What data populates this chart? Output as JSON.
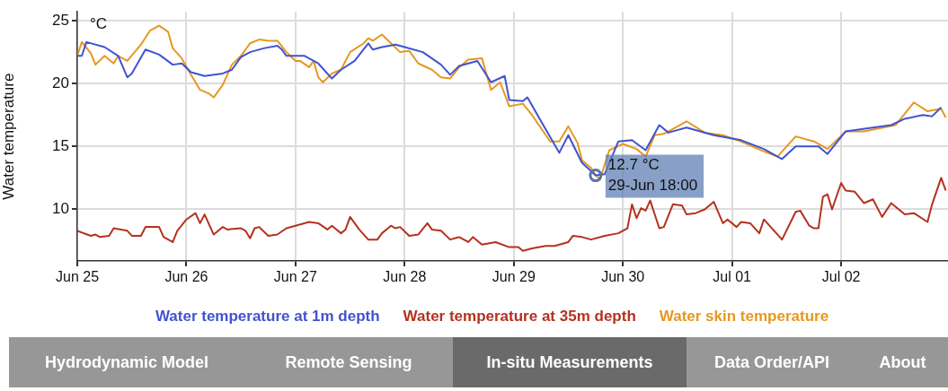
{
  "chart_data": {
    "type": "line",
    "ylabel": "Water temperature",
    "xlim": [
      "--06-25T00:00",
      "--07-02T23:30"
    ],
    "ylim": [
      5.9,
      25.7
    ],
    "yticks": [
      10,
      15,
      20,
      25
    ],
    "xticks": [
      {
        "value": "--06-25",
        "label": "Jun 25"
      },
      {
        "value": "--06-26",
        "label": "Jun 26"
      },
      {
        "value": "--06-27",
        "label": "Jun 27"
      },
      {
        "value": "--06-28",
        "label": "Jun 28"
      },
      {
        "value": "--06-29",
        "label": "Jun 29"
      },
      {
        "value": "--06-30",
        "label": "Jun 30"
      },
      {
        "value": "--07-01",
        "label": "Jul 01"
      },
      {
        "value": "--07-02",
        "label": "Jul 02"
      }
    ],
    "grid": true,
    "legend": "bottom",
    "marker": "none",
    "line_style": "solid",
    "series": [
      {
        "name": "Water temperature at 1m depth",
        "color": "#4053d0",
        "x": [
          "--06-25T00:00",
          "--06-25T01:00",
          "--06-25T02:00",
          "--06-25T06:00",
          "--06-25T09:00",
          "--06-25T11:00",
          "--06-25T12:00",
          "--06-25T15:00",
          "--06-25T18:00",
          "--06-25T21:00",
          "--06-25T23:00",
          "--06-26T01:00",
          "--06-26T04:00",
          "--06-26T08:00",
          "--06-26T10:00",
          "--06-26T12:00",
          "--06-26T14:00",
          "--06-26T17:00",
          "--06-26T20:00",
          "--06-26T21:00",
          "--06-26T22:00",
          "--06-27T00:00",
          "--06-27T02:00",
          "--06-27T05:00",
          "--06-27T08:00",
          "--06-27T10:00",
          "--06-27T13:00",
          "--06-27T16:00",
          "--06-27T17:00",
          "--06-27T19:00",
          "--06-27T22:00",
          "--06-28T00:00",
          "--06-28T04:00",
          "--06-28T08:00",
          "--06-28T10:00",
          "--06-28T12:00",
          "--06-28T16:00",
          "--06-28T19:00",
          "--06-28T22:00",
          "--06-28T23:00",
          "--06-29T02:00",
          "--06-29T03:00",
          "--06-29T06:00",
          "--06-29T10:00",
          "--06-29T12:00",
          "--06-29T15:00",
          "--06-29T18:00",
          "--06-29T20:00",
          "--06-29T23:00",
          "--06-30T02:00",
          "--06-30T05:00",
          "--06-30T08:00",
          "--06-30T10:00",
          "--06-30T14:00",
          "--06-30T20:00",
          "--07-01T02:00",
          "--07-01T07:00",
          "--07-01T11:00",
          "--07-01T14:00",
          "--07-01T19:00",
          "--07-01T21:00",
          "--07-02T01:00",
          "--07-02T07:00",
          "--07-02T11:00",
          "--07-02T14:00",
          "--07-02T18:00",
          "--07-02T20:00",
          "--07-02T22:00"
        ],
        "values": [
          22.2,
          22.2,
          23.3,
          22.9,
          22.2,
          20.5,
          20.8,
          22.7,
          22.3,
          21.5,
          21.6,
          20.9,
          20.6,
          20.8,
          21.1,
          22.1,
          22.5,
          22.8,
          23.0,
          22.7,
          22.2,
          22.2,
          22.2,
          21.6,
          20.4,
          21.1,
          21.8,
          23.2,
          22.7,
          22.9,
          23.1,
          22.9,
          22.5,
          21.5,
          20.7,
          21.4,
          21.8,
          20.1,
          20.6,
          18.7,
          18.6,
          18.9,
          17.0,
          14.5,
          15.9,
          13.7,
          12.7,
          12.8,
          15.4,
          15.5,
          14.7,
          16.7,
          16.1,
          16.5,
          15.9,
          15.5,
          14.8,
          14.0,
          15.0,
          15.0,
          14.4,
          16.2,
          16.5,
          16.7,
          17.2,
          17.5,
          17.4,
          18.1
        ]
      },
      {
        "name": "Water temperature at 35m depth",
        "color": "#b3321f",
        "x": [
          "--06-25T00:00",
          "--06-25T03:00",
          "--06-25T04:00",
          "--06-25T05:00",
          "--06-25T07:00",
          "--06-25T08:00",
          "--06-25T11:00",
          "--06-25T12:00",
          "--06-25T14:00",
          "--06-25T15:00",
          "--06-25T18:00",
          "--06-25T19:00",
          "--06-25T21:00",
          "--06-25T22:00",
          "--06-26T00:00",
          "--06-26T02:00",
          "--06-26T03:00",
          "--06-26T04:00",
          "--06-26T06:00",
          "--06-26T08:00",
          "--06-26T09:00",
          "--06-26T12:00",
          "--06-26T13:00",
          "--06-26T14:00",
          "--06-26T15:00",
          "--06-26T16:00",
          "--06-26T18:00",
          "--06-26T20:00",
          "--06-26T22:00",
          "--06-27T00:00",
          "--06-27T03:00",
          "--06-27T05:00",
          "--06-27T07:00",
          "--06-27T08:00",
          "--06-27T10:00",
          "--06-27T11:00",
          "--06-27T12:00",
          "--06-27T14:00",
          "--06-27T16:00",
          "--06-27T18:00",
          "--06-27T19:00",
          "--06-27T21:00",
          "--06-27T22:00",
          "--06-27T23:00",
          "--06-28T01:00",
          "--06-28T03:00",
          "--06-28T05:00",
          "--06-28T06:00",
          "--06-28T08:00",
          "--06-28T10:00",
          "--06-28T12:00",
          "--06-28T14:00",
          "--06-28T15:00",
          "--06-28T17:00",
          "--06-28T20:00",
          "--06-28T23:00",
          "--06-29T01:00",
          "--06-29T02:00",
          "--06-29T04:00",
          "--06-29T07:00",
          "--06-29T09:00",
          "--06-29T12:00",
          "--06-29T13:00",
          "--06-29T15:00",
          "--06-29T17:00",
          "--06-29T20:00",
          "--06-29T23:00",
          "--06-30T01:00",
          "--06-30T02:00",
          "--06-30T03:00",
          "--06-30T04:00",
          "--06-30T05:00",
          "--06-30T06:00",
          "--06-30T08:00",
          "--06-30T09:00",
          "--06-30T11:00",
          "--06-30T13:00",
          "--06-30T14:00",
          "--06-30T16:00",
          "--06-30T18:00",
          "--06-30T20:00",
          "--06-30T22:00",
          "--06-30T23:00",
          "--07-01T01:00",
          "--07-01T02:00",
          "--07-01T04:00",
          "--07-01T06:00",
          "--07-01T07:00",
          "--07-01T11:00",
          "--07-01T14:00",
          "--07-01T15:00",
          "--07-01T17:00",
          "--07-01T18:00",
          "--07-01T19:00",
          "--07-01T20:00",
          "--07-01T21:00",
          "--07-01T22:00",
          "--07-02T00:00",
          "--07-02T01:00",
          "--07-02T03:00",
          "--07-02T05:00",
          "--07-02T07:00",
          "--07-02T09:00",
          "--07-02T11:00",
          "--07-02T14:00",
          "--07-02T16:00",
          "--07-02T19:00",
          "--07-02T20:00",
          "--07-02T22:00",
          "--07-02T23:00"
        ],
        "values": [
          8.3,
          7.9,
          8.0,
          7.8,
          7.9,
          8.5,
          8.3,
          7.9,
          7.9,
          8.6,
          8.6,
          7.8,
          7.4,
          8.3,
          9.2,
          9.7,
          8.9,
          9.6,
          8.0,
          8.6,
          8.4,
          8.5,
          8.3,
          7.7,
          8.5,
          8.6,
          7.9,
          8.0,
          8.5,
          8.7,
          9.0,
          8.9,
          8.4,
          8.7,
          8.1,
          8.4,
          9.4,
          8.4,
          7.6,
          7.6,
          8.1,
          8.7,
          8.5,
          8.6,
          7.9,
          8.0,
          8.9,
          8.4,
          8.3,
          7.6,
          7.8,
          7.4,
          7.8,
          7.2,
          7.4,
          7.0,
          7.0,
          6.7,
          6.9,
          7.1,
          7.1,
          7.4,
          7.9,
          7.8,
          7.6,
          7.9,
          8.1,
          8.5,
          10.4,
          9.3,
          10.1,
          9.9,
          10.7,
          8.5,
          8.6,
          10.4,
          10.3,
          9.6,
          9.7,
          10.0,
          10.6,
          8.9,
          9.2,
          8.6,
          9.0,
          8.9,
          8.1,
          9.2,
          7.6,
          9.8,
          9.9,
          8.7,
          8.5,
          8.5,
          11.0,
          11.2,
          10.0,
          12.1,
          11.5,
          11.4,
          10.5,
          10.8,
          9.4,
          10.5,
          9.6,
          9.7,
          9.0,
          10.4,
          12.5,
          11.5
        ]
      },
      {
        "name": "Water skin temperature",
        "color": "#e6981f",
        "x": [
          "--06-25T00:00",
          "--06-25T01:00",
          "--06-25T03:00",
          "--06-25T04:00",
          "--06-25T06:00",
          "--06-25T08:00",
          "--06-25T09:00",
          "--06-25T11:00",
          "--06-25T14:00",
          "--06-25T16:00",
          "--06-25T18:00",
          "--06-25T20:00",
          "--06-25T21:00",
          "--06-25T23:00",
          "--06-26T01:00",
          "--06-26T03:00",
          "--06-26T05:00",
          "--06-26T06:00",
          "--06-26T08:00",
          "--06-26T10:00",
          "--06-26T12:00",
          "--06-26T14:00",
          "--06-26T16:00",
          "--06-26T18:00",
          "--06-26T20:00",
          "--06-26T22:00",
          "--06-27T00:00",
          "--06-27T01:00",
          "--06-27T03:00",
          "--06-27T04:00",
          "--06-27T05:00",
          "--06-27T06:00",
          "--06-27T08:00",
          "--06-27T10:00",
          "--06-27T12:00",
          "--06-27T15:00",
          "--06-27T16:00",
          "--06-27T17:00",
          "--06-27T19:00",
          "--06-27T21:00",
          "--06-27T23:00",
          "--06-28T01:00",
          "--06-28T03:00",
          "--06-28T06:00",
          "--06-28T08:00",
          "--06-28T10:00",
          "--06-28T12:00",
          "--06-28T14:00",
          "--06-28T17:00",
          "--06-28T19:00",
          "--06-28T21:00",
          "--06-28T23:00",
          "--06-29T02:00",
          "--06-29T04:00",
          "--06-29T08:00",
          "--06-29T10:00",
          "--06-29T12:00",
          "--06-29T14:00",
          "--06-29T15:00",
          "--06-29T17:00",
          "--06-29T18:00",
          "--06-29T19:00",
          "--06-29T21:00",
          "--06-30T00:00",
          "--06-30T03:00",
          "--06-30T05:00",
          "--06-30T07:00",
          "--06-30T09:00",
          "--06-30T14:00",
          "--06-30T18:00",
          "--06-30T22:00",
          "--07-01T02:00",
          "--07-01T07:00",
          "--07-01T10:00",
          "--07-01T14:00",
          "--07-01T18:00",
          "--07-01T21:00",
          "--07-02T01:00",
          "--07-02T05:00",
          "--07-02T12:00",
          "--07-02T16:00",
          "--07-02T19:00",
          "--07-02T22:00",
          "--07-02T23:00"
        ],
        "values": [
          22.2,
          23.3,
          22.4,
          21.5,
          22.2,
          21.6,
          22.2,
          21.8,
          23.1,
          24.2,
          24.6,
          24.1,
          22.8,
          22.0,
          20.7,
          19.5,
          19.2,
          18.9,
          19.9,
          21.5,
          22.2,
          23.2,
          23.5,
          23.4,
          23.4,
          22.5,
          21.8,
          21.8,
          21.3,
          21.8,
          20.5,
          20.1,
          20.8,
          21.1,
          22.5,
          23.2,
          23.6,
          23.4,
          23.9,
          23.2,
          22.5,
          22.6,
          21.6,
          21.1,
          20.5,
          20.4,
          21.3,
          21.9,
          22.0,
          19.5,
          20.1,
          18.2,
          18.4,
          17.5,
          15.4,
          15.4,
          16.6,
          15.3,
          13.9,
          13.3,
          12.7,
          12.4,
          14.7,
          15.2,
          14.8,
          14.2,
          15.9,
          16.0,
          17.0,
          16.1,
          15.9,
          15.4,
          14.6,
          14.2,
          15.8,
          15.4,
          14.8,
          16.2,
          16.2,
          16.7,
          18.5,
          17.8,
          18.0,
          17.3
        ]
      }
    ],
    "annotations": [
      "°C",
      {
        "text": "12.7 °C\n29-Jun 18:00",
        "x": "--06-29T18:00",
        "y": 12.7
      },
      "Hydrodynamic Model",
      "Remote Sensing",
      "In-situ Measurements",
      "Data Order/API",
      "About"
    ]
  }
}
